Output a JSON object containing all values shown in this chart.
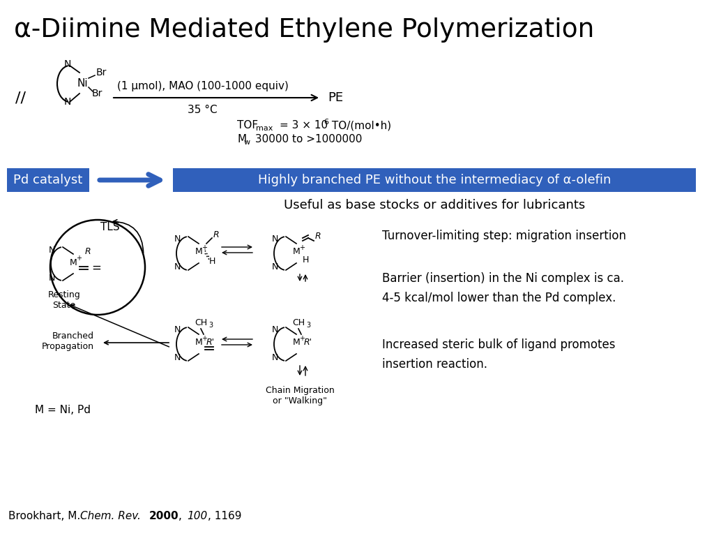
{
  "title": "α-Diimine Mediated Ethylene Polymerization",
  "title_fontsize": 28,
  "bg_color": "#ffffff",
  "blue_color": "#3060BB",
  "text_color": "#000000",
  "white_text": "#ffffff",
  "pd_catalyst_label": "Pd catalyst",
  "arrow_result": "Highly branched PE without the intermediacy of α-olefin",
  "useful_text": "Useful as base stocks or additives for lubricants",
  "tls_text": "Turnover-limiting step: migration insertion",
  "barrier_text": "Barrier (insertion) in the Ni complex is ca.\n4-5 kcal/mol lower than the Pd complex.",
  "steric_text": "Increased steric bulk of ligand promotes\ninsertion reaction.",
  "resting_label": "Resting\nState",
  "branched_label": "Branched\nPropagation",
  "chain_label": "Chain Migration\nor \"Walking\"",
  "m_label": "M = Ni, Pd",
  "tls_label": "TLS",
  "reaction_above": "(1 μmol), MAO (100-1000 equiv)",
  "reaction_below": "35 °C",
  "reaction_product": "PE"
}
